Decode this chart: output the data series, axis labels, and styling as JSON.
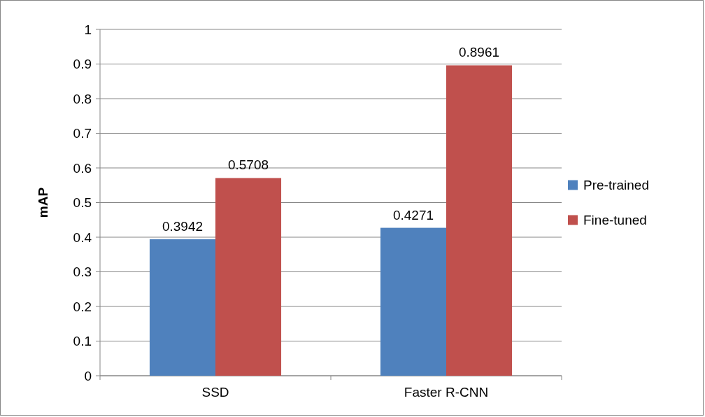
{
  "chart_data": {
    "type": "bar",
    "ylabel": "mAP",
    "categories": [
      "SSD",
      "Faster R-CNN"
    ],
    "series": [
      {
        "name": "Pre-trained",
        "color": "#4f81bd",
        "values": [
          0.3942,
          0.4271
        ]
      },
      {
        "name": "Fine-tuned",
        "color": "#c0504d",
        "values": [
          0.5708,
          0.8961
        ]
      }
    ],
    "ylim": [
      0,
      1
    ],
    "yticks": [
      0,
      0.1,
      0.2,
      0.3,
      0.4,
      0.5,
      0.6,
      0.7,
      0.8,
      0.9,
      1
    ],
    "grid": "y",
    "legend": "right",
    "data_labels": true
  }
}
